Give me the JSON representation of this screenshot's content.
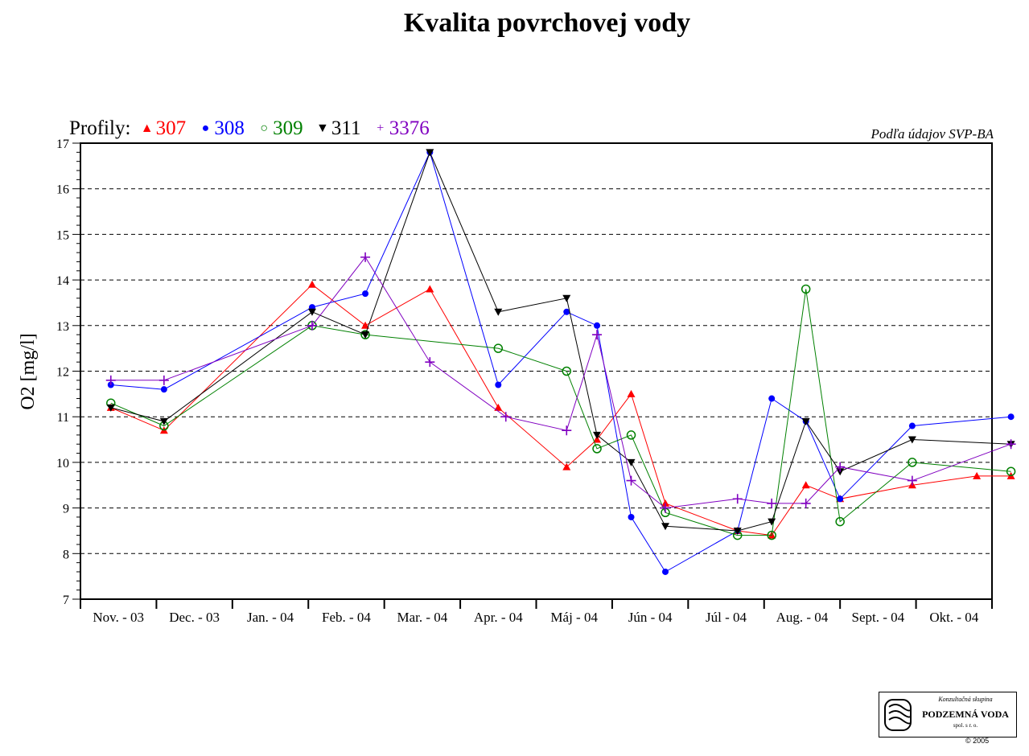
{
  "title": "Kvalita povrchovej vody",
  "source_note": "Podľa údajov SVP-BA",
  "legend": {
    "label": "Profily:",
    "items": [
      {
        "name": "307",
        "color": "#ff0000",
        "marker": "triangle-up"
      },
      {
        "name": "308",
        "color": "#0000ff",
        "marker": "circle-filled"
      },
      {
        "name": "309",
        "color": "#008000",
        "marker": "circle-open"
      },
      {
        "name": "311",
        "color": "#000000",
        "marker": "triangle-down"
      },
      {
        "name": "3376",
        "color": "#8000c0",
        "marker": "plus"
      }
    ]
  },
  "chart_data": {
    "type": "line",
    "title": "Kvalita povrchovej vody",
    "ylabel": "O2  [mg/l]",
    "xlabel": "",
    "ylim": [
      7,
      17
    ],
    "yticks": [
      7,
      8,
      9,
      10,
      11,
      12,
      13,
      14,
      15,
      16,
      17
    ],
    "categories": [
      "Nov. - 03",
      "Dec. - 03",
      "Jan. - 04",
      "Feb. - 04",
      "Mar. - 04",
      "Apr. - 04",
      "Máj - 04",
      "Jún - 04",
      "Júl - 04",
      "Aug. - 04",
      "Sept. - 04",
      "Okt. - 04"
    ],
    "grid": "horizontal-dashed",
    "legend_position": "top-left",
    "series": [
      {
        "name": "307",
        "color": "#ff0000",
        "marker": "triangle-up",
        "points": [
          [
            0.4,
            11.2
          ],
          [
            1.1,
            10.7
          ],
          [
            3.05,
            13.9
          ],
          [
            3.75,
            13.0
          ],
          [
            4.6,
            13.8
          ],
          [
            5.5,
            11.2
          ],
          [
            6.4,
            9.9
          ],
          [
            6.8,
            10.5
          ],
          [
            7.25,
            11.5
          ],
          [
            7.7,
            9.1
          ],
          [
            8.65,
            8.5
          ],
          [
            9.1,
            8.4
          ],
          [
            9.55,
            9.5
          ],
          [
            10.0,
            9.2
          ],
          [
            10.95,
            9.5
          ],
          [
            11.8,
            9.7
          ],
          [
            12.25,
            9.7
          ]
        ]
      },
      {
        "name": "308",
        "color": "#0000ff",
        "marker": "circle-filled",
        "points": [
          [
            0.4,
            11.7
          ],
          [
            1.1,
            11.6
          ],
          [
            3.05,
            13.4
          ],
          [
            3.75,
            13.7
          ],
          [
            4.6,
            16.8
          ],
          [
            5.5,
            11.7
          ],
          [
            6.4,
            13.3
          ],
          [
            6.8,
            13.0
          ],
          [
            7.25,
            8.8
          ],
          [
            7.7,
            7.6
          ],
          [
            8.65,
            8.5
          ],
          [
            9.1,
            11.4
          ],
          [
            9.55,
            10.9
          ],
          [
            10.0,
            9.2
          ],
          [
            10.95,
            10.8
          ],
          [
            12.25,
            11.0
          ]
        ]
      },
      {
        "name": "309",
        "color": "#008000",
        "marker": "circle-open",
        "points": [
          [
            0.4,
            11.3
          ],
          [
            1.1,
            10.8
          ],
          [
            3.05,
            13.0
          ],
          [
            3.75,
            12.8
          ],
          [
            5.5,
            12.5
          ],
          [
            6.4,
            12.0
          ],
          [
            6.8,
            10.3
          ],
          [
            7.25,
            10.6
          ],
          [
            7.7,
            8.9
          ],
          [
            8.65,
            8.4
          ],
          [
            9.1,
            8.4
          ],
          [
            9.55,
            13.8
          ],
          [
            10.0,
            8.7
          ],
          [
            10.95,
            10.0
          ],
          [
            12.25,
            9.8
          ]
        ]
      },
      {
        "name": "311",
        "color": "#000000",
        "marker": "triangle-down",
        "points": [
          [
            0.4,
            11.2
          ],
          [
            1.1,
            10.9
          ],
          [
            3.05,
            13.3
          ],
          [
            3.75,
            12.8
          ],
          [
            4.6,
            16.8
          ],
          [
            5.5,
            13.3
          ],
          [
            6.4,
            13.6
          ],
          [
            6.8,
            10.6
          ],
          [
            7.25,
            10.0
          ],
          [
            7.7,
            8.6
          ],
          [
            8.65,
            8.5
          ],
          [
            9.1,
            8.7
          ],
          [
            9.55,
            10.9
          ],
          [
            10.0,
            9.8
          ],
          [
            10.95,
            10.5
          ],
          [
            12.25,
            10.4
          ]
        ]
      },
      {
        "name": "3376",
        "color": "#8000c0",
        "marker": "plus",
        "points": [
          [
            0.4,
            11.8
          ],
          [
            1.1,
            11.8
          ],
          [
            3.05,
            13.0
          ],
          [
            3.75,
            14.5
          ],
          [
            4.6,
            12.2
          ],
          [
            5.6,
            11.0
          ],
          [
            6.4,
            10.7
          ],
          [
            6.8,
            12.8
          ],
          [
            7.25,
            9.6
          ],
          [
            7.7,
            9.0
          ],
          [
            8.65,
            9.2
          ],
          [
            9.1,
            9.1
          ],
          [
            9.55,
            9.1
          ],
          [
            10.0,
            9.9
          ],
          [
            10.95,
            9.6
          ],
          [
            12.25,
            10.4
          ]
        ]
      }
    ]
  },
  "logo": {
    "line1": "Konzultačná skupina",
    "line2": "PODZEMNÁ VODA",
    "line3": "spol. s r. o."
  },
  "copyright": "© 2005"
}
